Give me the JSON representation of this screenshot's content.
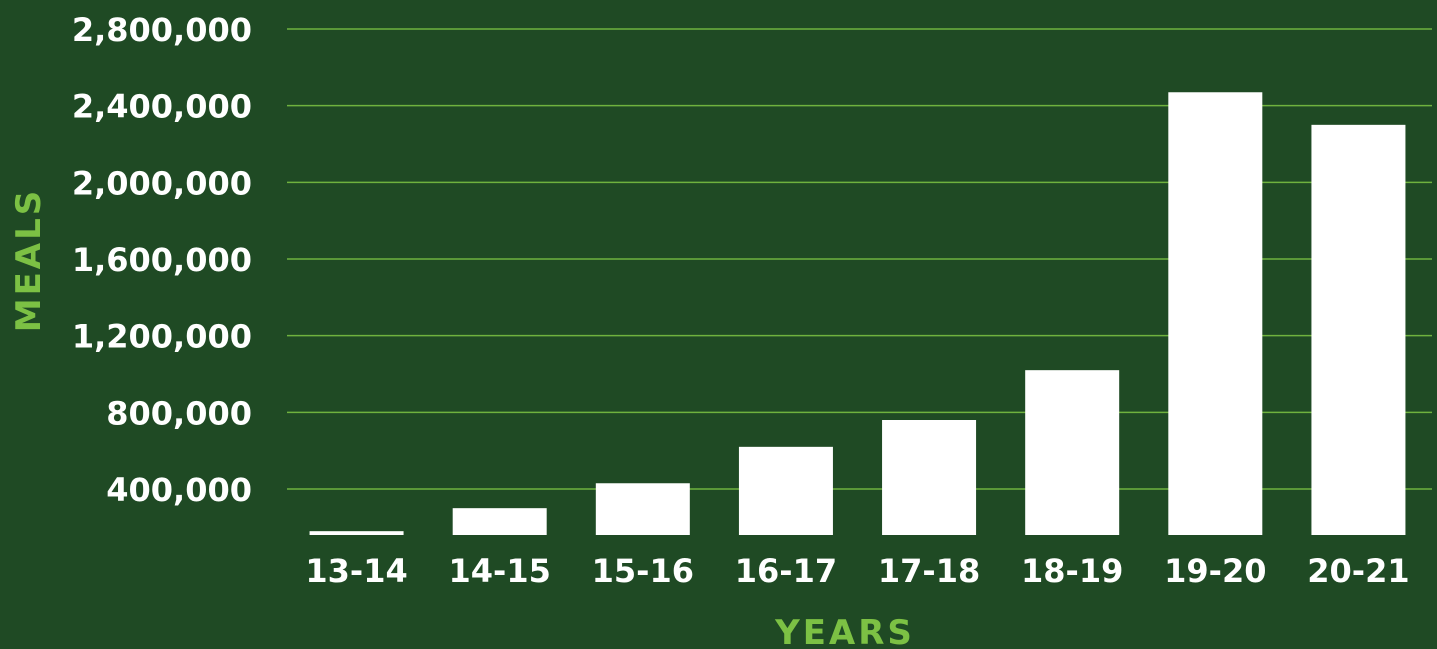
{
  "colors": {
    "background": "#1f4a24",
    "gridline": "#6fb23e",
    "bar": "#ffffff",
    "tick_text": "#ffffff",
    "axis_title": "#7cc144"
  },
  "chart_data": {
    "type": "bar",
    "title": "",
    "xlabel": "YEARS",
    "ylabel": "MEALS",
    "categories": [
      "13-14",
      "14-15",
      "15-16",
      "16-17",
      "17-18",
      "18-19",
      "19-20",
      "20-21"
    ],
    "values": [
      180000,
      300000,
      430000,
      620000,
      760000,
      1020000,
      2470000,
      2300000
    ],
    "ylim": [
      160000,
      2800000
    ],
    "yticks": [
      400000,
      800000,
      1200000,
      1600000,
      2000000,
      2400000,
      2800000
    ],
    "ytick_labels": [
      "400,000",
      "800,000",
      "1,200,000",
      "1,600,000",
      "2,000,000",
      "2,400,000",
      "2,800,000"
    ],
    "grid": true,
    "legend": "none"
  }
}
